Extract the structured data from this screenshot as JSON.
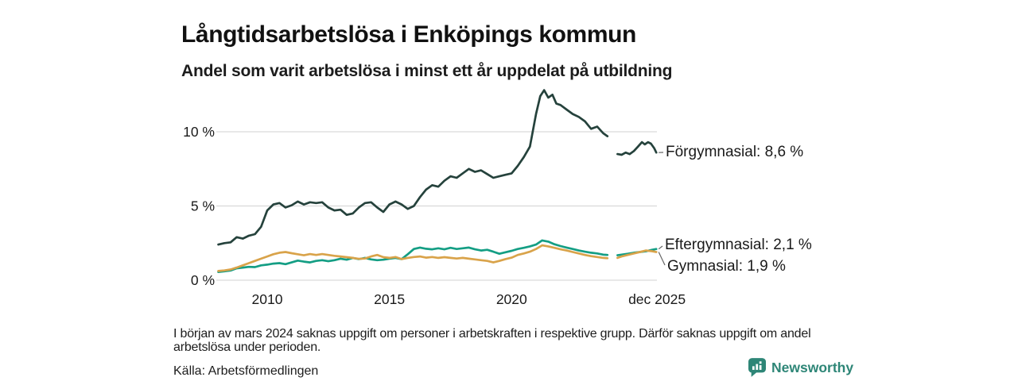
{
  "header": {
    "title": "Långtidsarbetslösa i Enköpings kommun",
    "subtitle": "Andel som varit arbetslösa i minst ett år uppdelat på utbildning"
  },
  "notes": {
    "footnote": "I början av mars 2024 saknas uppgift om personer i arbetskraften i respektive grupp. Därför saknas uppgift om andel arbetslösa under perioden.",
    "source": "Källa: Arbetsförmedlingen"
  },
  "brand": {
    "name": "Newsworthy",
    "color": "#2e8677",
    "icon": "newsworthy-chart-bubble-icon"
  },
  "colors": {
    "grid": "#d9d9d9",
    "text": "#1a1a1a",
    "connector": "#666666"
  },
  "chart_data": {
    "type": "line",
    "title": "Långtidsarbetslösa i Enköpings kommun",
    "subtitle": "Andel som varit arbetslösa i minst ett år uppdelat på utbildning",
    "xlabel": "",
    "ylabel": "",
    "x_unit": "year",
    "y_unit": "%",
    "xlim": [
      2007.9,
      2026.1
    ],
    "ylim": [
      0,
      13
    ],
    "grid": "horizontal",
    "legend_position": "right-end-labels",
    "gap_period": "mars 2024",
    "yticks": [
      {
        "value": 0,
        "label": "0 %"
      },
      {
        "value": 5,
        "label": "5 %"
      },
      {
        "value": 10,
        "label": "10 %"
      }
    ],
    "xticks": [
      {
        "value": 2010,
        "label": "2010"
      },
      {
        "value": 2015,
        "label": "2015"
      },
      {
        "value": 2020,
        "label": "2020"
      },
      {
        "value": 2025.95,
        "label": "dec 2025"
      }
    ],
    "series": [
      {
        "name": "Förgymnasial",
        "color": "#25423c",
        "end_value": "8,6 %",
        "end_label": "Förgymnasial: 8,6 %",
        "points": [
          [
            2008.0,
            2.4
          ],
          [
            2008.25,
            2.5
          ],
          [
            2008.5,
            2.55
          ],
          [
            2008.75,
            2.9
          ],
          [
            2009.0,
            2.8
          ],
          [
            2009.25,
            3.0
          ],
          [
            2009.5,
            3.1
          ],
          [
            2009.75,
            3.6
          ],
          [
            2010.0,
            4.7
          ],
          [
            2010.25,
            5.1
          ],
          [
            2010.5,
            5.2
          ],
          [
            2010.75,
            4.9
          ],
          [
            2011.0,
            5.05
          ],
          [
            2011.25,
            5.3
          ],
          [
            2011.5,
            5.1
          ],
          [
            2011.75,
            5.25
          ],
          [
            2012.0,
            5.2
          ],
          [
            2012.25,
            5.25
          ],
          [
            2012.5,
            4.9
          ],
          [
            2012.75,
            4.7
          ],
          [
            2013.0,
            4.75
          ],
          [
            2013.25,
            4.4
          ],
          [
            2013.5,
            4.5
          ],
          [
            2013.75,
            4.9
          ],
          [
            2014.0,
            5.2
          ],
          [
            2014.25,
            5.25
          ],
          [
            2014.5,
            4.9
          ],
          [
            2014.75,
            4.6
          ],
          [
            2015.0,
            5.1
          ],
          [
            2015.25,
            5.3
          ],
          [
            2015.5,
            5.1
          ],
          [
            2015.75,
            4.8
          ],
          [
            2016.0,
            5.0
          ],
          [
            2016.25,
            5.6
          ],
          [
            2016.5,
            6.1
          ],
          [
            2016.75,
            6.4
          ],
          [
            2017.0,
            6.3
          ],
          [
            2017.25,
            6.7
          ],
          [
            2017.5,
            7.0
          ],
          [
            2017.75,
            6.9
          ],
          [
            2018.0,
            7.2
          ],
          [
            2018.25,
            7.5
          ],
          [
            2018.5,
            7.3
          ],
          [
            2018.75,
            7.4
          ],
          [
            2019.0,
            7.15
          ],
          [
            2019.25,
            6.9
          ],
          [
            2019.5,
            7.0
          ],
          [
            2019.75,
            7.1
          ],
          [
            2020.0,
            7.2
          ],
          [
            2020.25,
            7.7
          ],
          [
            2020.5,
            8.3
          ],
          [
            2020.75,
            9.0
          ],
          [
            2021.0,
            11.2
          ],
          [
            2021.17,
            12.4
          ],
          [
            2021.33,
            12.8
          ],
          [
            2021.5,
            12.3
          ],
          [
            2021.67,
            12.5
          ],
          [
            2021.83,
            11.9
          ],
          [
            2022.0,
            11.8
          ],
          [
            2022.25,
            11.5
          ],
          [
            2022.5,
            11.2
          ],
          [
            2022.75,
            11.0
          ],
          [
            2023.0,
            10.7
          ],
          [
            2023.25,
            10.2
          ],
          [
            2023.5,
            10.35
          ],
          [
            2023.75,
            9.9
          ],
          [
            2023.92,
            9.7
          ],
          null,
          [
            2024.33,
            8.5
          ],
          [
            2024.5,
            8.45
          ],
          [
            2024.67,
            8.6
          ],
          [
            2024.83,
            8.5
          ],
          [
            2025.0,
            8.7
          ],
          [
            2025.17,
            9.0
          ],
          [
            2025.33,
            9.3
          ],
          [
            2025.45,
            9.15
          ],
          [
            2025.58,
            9.3
          ],
          [
            2025.7,
            9.2
          ],
          [
            2025.83,
            8.9
          ],
          [
            2025.92,
            8.6
          ]
        ]
      },
      {
        "name": "Eftergymnasial",
        "color": "#149e84",
        "end_value": "2,1 %",
        "end_label": "Eftergymnasial: 2,1 %",
        "points": [
          [
            2008.0,
            0.55
          ],
          [
            2008.25,
            0.6
          ],
          [
            2008.5,
            0.65
          ],
          [
            2008.75,
            0.8
          ],
          [
            2009.0,
            0.85
          ],
          [
            2009.25,
            0.9
          ],
          [
            2009.5,
            0.88
          ],
          [
            2009.75,
            1.0
          ],
          [
            2010.0,
            1.05
          ],
          [
            2010.25,
            1.12
          ],
          [
            2010.5,
            1.15
          ],
          [
            2010.75,
            1.08
          ],
          [
            2011.0,
            1.2
          ],
          [
            2011.25,
            1.32
          ],
          [
            2011.5,
            1.25
          ],
          [
            2011.75,
            1.2
          ],
          [
            2012.0,
            1.3
          ],
          [
            2012.25,
            1.35
          ],
          [
            2012.5,
            1.28
          ],
          [
            2012.75,
            1.35
          ],
          [
            2013.0,
            1.45
          ],
          [
            2013.25,
            1.38
          ],
          [
            2013.5,
            1.5
          ],
          [
            2013.75,
            1.42
          ],
          [
            2014.0,
            1.5
          ],
          [
            2014.25,
            1.4
          ],
          [
            2014.5,
            1.35
          ],
          [
            2014.75,
            1.38
          ],
          [
            2015.0,
            1.45
          ],
          [
            2015.25,
            1.5
          ],
          [
            2015.5,
            1.42
          ],
          [
            2015.75,
            1.75
          ],
          [
            2016.0,
            2.1
          ],
          [
            2016.25,
            2.2
          ],
          [
            2016.5,
            2.12
          ],
          [
            2016.75,
            2.08
          ],
          [
            2017.0,
            2.15
          ],
          [
            2017.25,
            2.08
          ],
          [
            2017.5,
            2.18
          ],
          [
            2017.75,
            2.1
          ],
          [
            2018.0,
            2.15
          ],
          [
            2018.25,
            2.2
          ],
          [
            2018.5,
            2.08
          ],
          [
            2018.75,
            2.0
          ],
          [
            2019.0,
            2.05
          ],
          [
            2019.25,
            1.92
          ],
          [
            2019.5,
            1.78
          ],
          [
            2019.75,
            1.88
          ],
          [
            2020.0,
            1.98
          ],
          [
            2020.25,
            2.1
          ],
          [
            2020.5,
            2.18
          ],
          [
            2020.75,
            2.28
          ],
          [
            2021.0,
            2.4
          ],
          [
            2021.25,
            2.68
          ],
          [
            2021.5,
            2.6
          ],
          [
            2021.75,
            2.42
          ],
          [
            2022.0,
            2.3
          ],
          [
            2022.25,
            2.2
          ],
          [
            2022.5,
            2.1
          ],
          [
            2022.75,
            2.0
          ],
          [
            2023.0,
            1.92
          ],
          [
            2023.25,
            1.85
          ],
          [
            2023.5,
            1.8
          ],
          [
            2023.75,
            1.72
          ],
          [
            2023.92,
            1.7
          ],
          null,
          [
            2024.33,
            1.68
          ],
          [
            2024.5,
            1.72
          ],
          [
            2024.75,
            1.78
          ],
          [
            2025.0,
            1.85
          ],
          [
            2025.25,
            1.9
          ],
          [
            2025.5,
            1.95
          ],
          [
            2025.75,
            2.05
          ],
          [
            2025.92,
            2.1
          ]
        ]
      },
      {
        "name": "Gymnasial",
        "color": "#d9a34a",
        "end_value": "1,9 %",
        "end_label": "Gymnasial: 1,9 %",
        "points": [
          [
            2008.0,
            0.62
          ],
          [
            2008.25,
            0.66
          ],
          [
            2008.5,
            0.72
          ],
          [
            2008.75,
            0.85
          ],
          [
            2009.0,
            1.0
          ],
          [
            2009.25,
            1.15
          ],
          [
            2009.5,
            1.3
          ],
          [
            2009.75,
            1.45
          ],
          [
            2010.0,
            1.6
          ],
          [
            2010.25,
            1.75
          ],
          [
            2010.5,
            1.85
          ],
          [
            2010.75,
            1.9
          ],
          [
            2011.0,
            1.82
          ],
          [
            2011.25,
            1.75
          ],
          [
            2011.5,
            1.68
          ],
          [
            2011.75,
            1.76
          ],
          [
            2012.0,
            1.7
          ],
          [
            2012.25,
            1.76
          ],
          [
            2012.5,
            1.7
          ],
          [
            2012.75,
            1.64
          ],
          [
            2013.0,
            1.6
          ],
          [
            2013.25,
            1.55
          ],
          [
            2013.5,
            1.5
          ],
          [
            2013.75,
            1.44
          ],
          [
            2014.0,
            1.46
          ],
          [
            2014.25,
            1.6
          ],
          [
            2014.5,
            1.7
          ],
          [
            2014.75,
            1.55
          ],
          [
            2015.0,
            1.5
          ],
          [
            2015.25,
            1.56
          ],
          [
            2015.5,
            1.42
          ],
          [
            2015.75,
            1.5
          ],
          [
            2016.0,
            1.56
          ],
          [
            2016.25,
            1.6
          ],
          [
            2016.5,
            1.52
          ],
          [
            2016.75,
            1.56
          ],
          [
            2017.0,
            1.5
          ],
          [
            2017.25,
            1.55
          ],
          [
            2017.5,
            1.5
          ],
          [
            2017.75,
            1.46
          ],
          [
            2018.0,
            1.5
          ],
          [
            2018.25,
            1.45
          ],
          [
            2018.5,
            1.4
          ],
          [
            2018.75,
            1.35
          ],
          [
            2019.0,
            1.3
          ],
          [
            2019.25,
            1.2
          ],
          [
            2019.5,
            1.3
          ],
          [
            2019.75,
            1.42
          ],
          [
            2020.0,
            1.52
          ],
          [
            2020.25,
            1.7
          ],
          [
            2020.5,
            1.8
          ],
          [
            2020.75,
            1.92
          ],
          [
            2021.0,
            2.1
          ],
          [
            2021.25,
            2.35
          ],
          [
            2021.5,
            2.28
          ],
          [
            2021.75,
            2.18
          ],
          [
            2022.0,
            2.08
          ],
          [
            2022.25,
            2.0
          ],
          [
            2022.5,
            1.9
          ],
          [
            2022.75,
            1.8
          ],
          [
            2023.0,
            1.7
          ],
          [
            2023.25,
            1.62
          ],
          [
            2023.5,
            1.56
          ],
          [
            2023.75,
            1.5
          ],
          [
            2023.92,
            1.48
          ],
          null,
          [
            2024.33,
            1.5
          ],
          [
            2024.5,
            1.6
          ],
          [
            2024.75,
            1.7
          ],
          [
            2025.0,
            1.8
          ],
          [
            2025.25,
            1.9
          ],
          [
            2025.5,
            2.0
          ],
          [
            2025.75,
            1.95
          ],
          [
            2025.92,
            1.9
          ]
        ]
      }
    ]
  }
}
